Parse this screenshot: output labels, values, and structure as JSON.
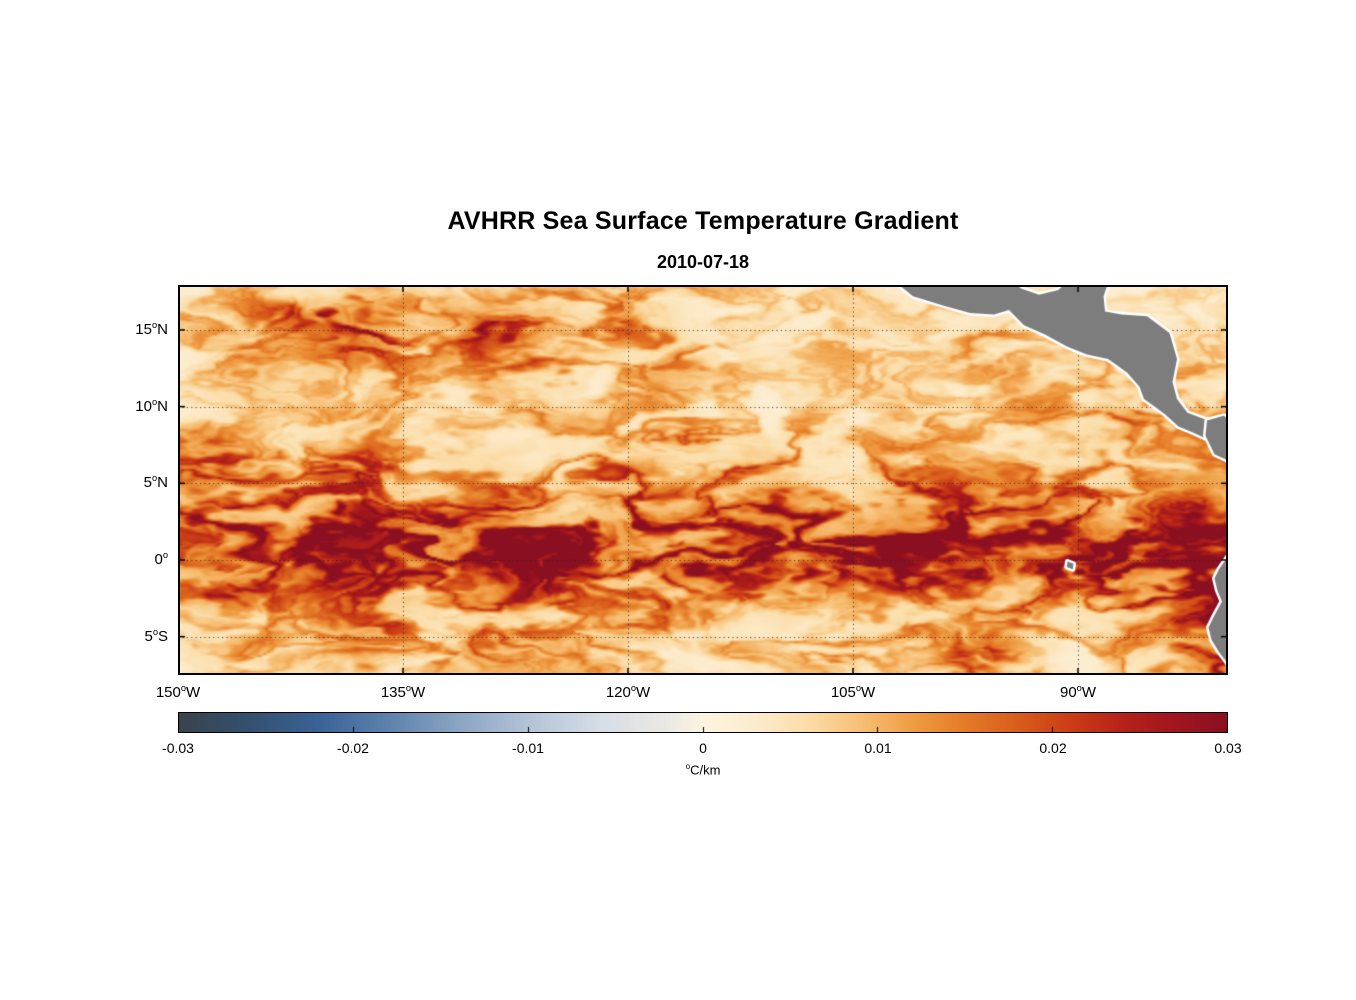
{
  "title": "AVHRR Sea Surface Temperature Gradient",
  "subtitle": "2010-07-18",
  "chart_data": {
    "type": "heatmap",
    "x_axis": {
      "range": [
        -150,
        -80
      ],
      "ticks": [
        {
          "value": -150,
          "label": "150°W"
        },
        {
          "value": -135,
          "label": "135°W"
        },
        {
          "value": -120,
          "label": "120°W"
        },
        {
          "value": -105,
          "label": "105°W"
        },
        {
          "value": -90,
          "label": "90°W"
        }
      ]
    },
    "y_axis": {
      "range": [
        -7.5,
        17.93
      ],
      "ticks": [
        {
          "value": 15,
          "label": "15°N"
        },
        {
          "value": 10,
          "label": "10°N"
        },
        {
          "value": 5,
          "label": "5°N"
        },
        {
          "value": 0,
          "label": "0°"
        },
        {
          "value": -5,
          "label": "5°S"
        }
      ]
    },
    "colorbar": {
      "min": -0.03,
      "max": 0.03,
      "tick_values": [
        -0.03,
        -0.02,
        -0.01,
        0,
        0.01,
        0.02,
        0.03
      ],
      "tick_labels": [
        "-0.03",
        "-0.02",
        "-0.01",
        "0",
        "0.01",
        "0.02",
        "0.03"
      ],
      "unit": "°C/km",
      "stops": [
        [
          -0.03,
          "#39434b"
        ],
        [
          -0.026,
          "#34506e"
        ],
        [
          -0.022,
          "#3a6296"
        ],
        [
          -0.018,
          "#5e82ad"
        ],
        [
          -0.014,
          "#8aa5c3"
        ],
        [
          -0.01,
          "#b3c3d6"
        ],
        [
          -0.006,
          "#d5dde6"
        ],
        [
          -0.002,
          "#ece9e4"
        ],
        [
          0.0,
          "#fdf4e1"
        ],
        [
          0.003,
          "#fceccd"
        ],
        [
          0.006,
          "#fbdda8"
        ],
        [
          0.009,
          "#f7bf75"
        ],
        [
          0.012,
          "#ef9d44"
        ],
        [
          0.015,
          "#e47b27"
        ],
        [
          0.018,
          "#d85d1c"
        ],
        [
          0.021,
          "#cb3d16"
        ],
        [
          0.024,
          "#b52319"
        ],
        [
          0.027,
          "#a0161e"
        ],
        [
          0.03,
          "#8a0f20"
        ]
      ]
    },
    "land_color": "#7d7d7d",
    "coast_outline_color": "#ffffff",
    "grid": {
      "note": "coarse visual estimate of SST gradient magnitude field",
      "unit": "°C/km",
      "scale": 0.001,
      "lon_start": -150,
      "lon_step": 2,
      "lat_start": 18,
      "lat_step": -2,
      "values": [
        [
          6,
          5,
          7,
          9,
          8,
          6,
          10,
          14,
          12,
          8,
          6,
          5,
          7,
          8,
          6,
          5,
          6,
          8,
          7,
          6,
          5,
          4,
          5,
          6,
          5,
          4,
          4,
          5,
          6,
          5,
          4,
          4,
          5,
          5,
          4,
          4
        ],
        [
          8,
          7,
          9,
          12,
          16,
          20,
          22,
          18,
          14,
          20,
          22,
          18,
          14,
          12,
          10,
          14,
          12,
          8,
          6,
          5,
          6,
          7,
          6,
          5,
          5,
          6,
          8,
          10,
          8,
          6,
          5,
          5,
          4,
          4,
          4,
          4
        ],
        [
          6,
          8,
          10,
          9,
          8,
          12,
          16,
          14,
          12,
          10,
          14,
          16,
          12,
          10,
          8,
          10,
          12,
          10,
          8,
          6,
          5,
          6,
          7,
          6,
          5,
          6,
          8,
          9,
          7,
          6,
          5,
          6,
          5,
          5,
          6,
          5
        ],
        [
          5,
          6,
          7,
          8,
          6,
          7,
          8,
          10,
          8,
          7,
          8,
          10,
          12,
          9,
          7,
          8,
          9,
          8,
          7,
          6,
          5,
          5,
          6,
          7,
          6,
          5,
          6,
          7,
          8,
          7,
          6,
          8,
          9,
          7,
          8,
          6
        ],
        [
          4,
          5,
          6,
          5,
          6,
          7,
          6,
          8,
          7,
          6,
          7,
          8,
          9,
          8,
          6,
          7,
          8,
          7,
          6,
          5,
          6,
          6,
          5,
          6,
          7,
          6,
          5,
          6,
          8,
          9,
          8,
          10,
          12,
          9,
          10,
          8
        ],
        [
          14,
          16,
          10,
          7,
          6,
          8,
          10,
          9,
          7,
          8,
          9,
          7,
          8,
          10,
          9,
          8,
          10,
          12,
          9,
          7,
          8,
          9,
          8,
          7,
          8,
          9,
          8,
          7,
          9,
          10,
          12,
          14,
          10,
          8,
          9,
          10
        ],
        [
          12,
          14,
          16,
          12,
          10,
          14,
          16,
          14,
          10,
          12,
          14,
          12,
          10,
          9,
          12,
          14,
          12,
          10,
          12,
          14,
          12,
          10,
          9,
          10,
          12,
          10,
          9,
          10,
          12,
          10,
          9,
          10,
          9,
          8,
          9,
          10
        ],
        [
          16,
          18,
          14,
          12,
          16,
          18,
          16,
          12,
          10,
          12,
          14,
          16,
          12,
          10,
          14,
          16,
          14,
          12,
          14,
          16,
          18,
          16,
          12,
          14,
          16,
          18,
          16,
          14,
          12,
          14,
          16,
          12,
          10,
          12,
          14,
          12
        ],
        [
          18,
          20,
          22,
          20,
          18,
          22,
          24,
          22,
          20,
          22,
          24,
          22,
          20,
          18,
          20,
          22,
          20,
          18,
          20,
          22,
          24,
          22,
          20,
          22,
          24,
          22,
          20,
          22,
          24,
          22,
          20,
          18,
          20,
          22,
          24,
          22
        ],
        [
          20,
          18,
          16,
          18,
          20,
          22,
          20,
          18,
          22,
          24,
          22,
          20,
          22,
          24,
          22,
          20,
          18,
          20,
          22,
          20,
          18,
          22,
          24,
          26,
          24,
          22,
          24,
          26,
          24,
          22,
          26,
          28,
          29,
          28,
          26,
          28
        ],
        [
          14,
          16,
          18,
          14,
          12,
          14,
          16,
          18,
          14,
          12,
          14,
          16,
          18,
          14,
          12,
          14,
          16,
          14,
          12,
          14,
          16,
          14,
          12,
          14,
          16,
          14,
          12,
          14,
          16,
          14,
          12,
          16,
          18,
          20,
          22,
          24
        ],
        [
          8,
          10,
          12,
          10,
          8,
          10,
          12,
          14,
          12,
          10,
          12,
          14,
          12,
          10,
          8,
          10,
          12,
          10,
          8,
          9,
          10,
          9,
          8,
          10,
          12,
          10,
          8,
          9,
          10,
          9,
          8,
          10,
          12,
          14,
          18,
          22
        ],
        [
          6,
          8,
          9,
          8,
          6,
          8,
          10,
          9,
          8,
          10,
          12,
          10,
          8,
          9,
          10,
          8,
          6,
          7,
          8,
          7,
          6,
          8,
          9,
          8,
          6,
          7,
          14,
          16,
          10,
          7,
          6,
          8,
          10,
          12,
          16,
          20
        ],
        [
          5,
          6,
          7,
          6,
          5,
          6,
          8,
          7,
          6,
          8,
          9,
          8,
          6,
          7,
          8,
          7,
          6,
          6,
          7,
          6,
          5,
          6,
          8,
          7,
          6,
          6,
          10,
          12,
          8,
          6,
          5,
          7,
          9,
          10,
          14,
          18
        ]
      ]
    },
    "land_polygons": {
      "central_america": [
        [
          -102.4,
          18.3
        ],
        [
          -101.0,
          17.2
        ],
        [
          -99.0,
          16.6
        ],
        [
          -97.2,
          16.1
        ],
        [
          -95.6,
          16.0
        ],
        [
          -94.6,
          16.3
        ],
        [
          -93.6,
          15.3
        ],
        [
          -92.2,
          14.7
        ],
        [
          -90.7,
          13.9
        ],
        [
          -89.4,
          13.4
        ],
        [
          -88.0,
          13.1
        ],
        [
          -87.4,
          12.7
        ],
        [
          -86.7,
          12.2
        ],
        [
          -85.9,
          11.3
        ],
        [
          -85.6,
          10.5
        ],
        [
          -84.9,
          10.0
        ],
        [
          -84.2,
          9.5
        ],
        [
          -83.3,
          8.7
        ],
        [
          -82.3,
          8.3
        ],
        [
          -81.2,
          7.8
        ],
        [
          -80.3,
          7.2
        ],
        [
          -79.6,
          7.0
        ],
        [
          -79.0,
          7.6
        ],
        [
          -79.0,
          9.6
        ],
        [
          -80.2,
          9.1
        ],
        [
          -81.6,
          9.2
        ],
        [
          -82.7,
          9.6
        ],
        [
          -83.4,
          10.5
        ],
        [
          -83.7,
          11.6
        ],
        [
          -83.4,
          13.1
        ],
        [
          -83.9,
          14.8
        ],
        [
          -85.4,
          15.9
        ],
        [
          -87.1,
          16.0
        ],
        [
          -88.2,
          16.2
        ],
        [
          -88.3,
          17.2
        ],
        [
          -87.9,
          18.3
        ],
        [
          -90.6,
          18.3
        ],
        [
          -91.3,
          17.6
        ],
        [
          -92.6,
          17.3
        ],
        [
          -93.8,
          17.7
        ],
        [
          -94.5,
          18.3
        ]
      ],
      "panama_colombia": [
        [
          -81.4,
          9.1
        ],
        [
          -80.3,
          9.4
        ],
        [
          -79.5,
          9.0
        ],
        [
          -79.3,
          7.8
        ],
        [
          -79.8,
          6.4
        ],
        [
          -80.9,
          6.9
        ],
        [
          -81.5,
          8.1
        ]
      ],
      "south_america": [
        [
          -79.6,
          0.8
        ],
        [
          -80.1,
          0.1
        ],
        [
          -80.6,
          -0.6
        ],
        [
          -80.9,
          -1.2
        ],
        [
          -80.7,
          -2.0
        ],
        [
          -80.4,
          -2.7
        ],
        [
          -80.9,
          -3.6
        ],
        [
          -81.3,
          -4.4
        ],
        [
          -81.1,
          -5.2
        ],
        [
          -80.6,
          -6.0
        ],
        [
          -79.9,
          -6.9
        ],
        [
          -79.4,
          -7.8
        ],
        [
          -79.1,
          -8.6
        ],
        [
          -77.5,
          -8.6
        ],
        [
          -77.5,
          0.8
        ]
      ],
      "galapagos": [
        [
          -90.7,
          -0.1
        ],
        [
          -90.3,
          -0.25
        ],
        [
          -90.35,
          -0.6
        ],
        [
          -90.75,
          -0.45
        ]
      ]
    }
  }
}
